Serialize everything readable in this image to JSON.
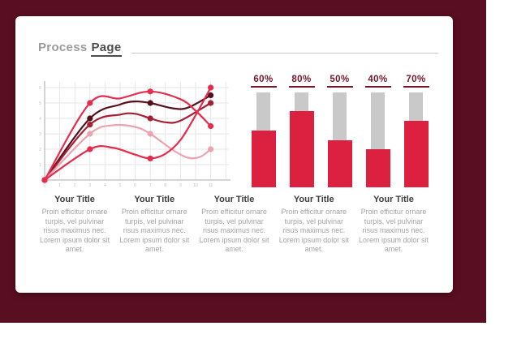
{
  "frame": {
    "color": "#5A0E21"
  },
  "title": {
    "prefix": "Process",
    "emphasis": "Page"
  },
  "chart_data": [
    {
      "id": "multi-line-chart",
      "type": "line",
      "title": "",
      "xlabel": "",
      "ylabel": "",
      "x_ticks": [
        "0",
        "1",
        "2",
        "3",
        "4",
        "5",
        "6",
        "7",
        "8",
        "9",
        "10",
        "11"
      ],
      "y_ticks": [
        "1",
        "2",
        "3",
        "4",
        "5",
        "6"
      ],
      "xlim": [
        0,
        12
      ],
      "ylim": [
        0,
        6.5
      ],
      "grid": true,
      "grid_color": "#E6E6E6",
      "axis_color": "#C9C9C9",
      "tick_color": "#C2C2C2",
      "series": [
        {
          "name": "dark-maroon",
          "color": "#541019",
          "points": [
            [
              0,
              0
            ],
            [
              3,
              4
            ],
            [
              7,
              5
            ],
            [
              11,
              5.5
            ]
          ],
          "path": [
            [
              0,
              0
            ],
            [
              3,
              4
            ],
            [
              5,
              4.9
            ],
            [
              6,
              5.1
            ],
            [
              7,
              5
            ],
            [
              8.5,
              4.65
            ],
            [
              9.5,
              4.7
            ],
            [
              11,
              5.5
            ]
          ]
        },
        {
          "name": "dark-red",
          "color": "#A81E32",
          "points": [
            [
              0,
              0
            ],
            [
              3,
              3.6
            ],
            [
              7,
              4
            ],
            [
              11,
              5
            ]
          ],
          "path": [
            [
              0,
              0
            ],
            [
              3,
              3.6
            ],
            [
              5,
              4.25
            ],
            [
              6,
              4.3
            ],
            [
              7,
              4
            ],
            [
              8,
              3.75
            ],
            [
              9,
              3.85
            ],
            [
              11,
              5
            ]
          ]
        },
        {
          "name": "pink",
          "color": "#ECA3AF",
          "points": [
            [
              0,
              0
            ],
            [
              3,
              3
            ],
            [
              7,
              3
            ],
            [
              11,
              2
            ]
          ],
          "path": [
            [
              0,
              0
            ],
            [
              3,
              3
            ],
            [
              4.5,
              3.55
            ],
            [
              6,
              3.45
            ],
            [
              7,
              3
            ],
            [
              8.5,
              1.95
            ],
            [
              9.5,
              1.45
            ],
            [
              10.3,
              1.5
            ],
            [
              11,
              2
            ]
          ]
        },
        {
          "name": "red-descending",
          "color": "#E62C4C",
          "points": [
            [
              0,
              0
            ],
            [
              3,
              5
            ],
            [
              7,
              5.75
            ],
            [
              11,
              3.5
            ]
          ],
          "path": [
            [
              0,
              0
            ],
            [
              3,
              5
            ],
            [
              5,
              5.3
            ],
            [
              7,
              5.75
            ],
            [
              9,
              5.25
            ],
            [
              10,
              4.5
            ],
            [
              11,
              3.5
            ]
          ]
        },
        {
          "name": "red-ascending",
          "color": "#E62C4C",
          "points": [
            [
              0,
              0
            ],
            [
              3,
              2
            ],
            [
              7,
              1.4
            ],
            [
              11,
              6
            ]
          ],
          "path": [
            [
              0,
              0
            ],
            [
              3,
              2
            ],
            [
              4.5,
              2.1
            ],
            [
              6,
              1.65
            ],
            [
              7,
              1.4
            ],
            [
              8,
              1.7
            ],
            [
              9,
              2.6
            ],
            [
              10,
              4.2
            ],
            [
              11,
              6
            ]
          ]
        }
      ]
    },
    {
      "id": "progress-bars",
      "type": "bar",
      "categories": [
        "60%",
        "80%",
        "50%",
        "40%",
        "70%"
      ],
      "values": [
        60,
        80,
        50,
        40,
        70
      ],
      "max": 100,
      "bar_color": "#DC2140",
      "track_color": "#C9C9C9",
      "label_color": "#701828"
    }
  ],
  "columns": [
    {
      "title": "Your Title",
      "body": "Proin efficitur ornare turpis, vel pulvinar risus maximus nec. Lorem ipsum dolor sit amet."
    },
    {
      "title": "Your Title",
      "body": "Proin efficitur ornare turpis, vel pulvinar risus maximus nec. Lorem ipsum dolor sit amet."
    },
    {
      "title": "Your Title",
      "body": "Proin efficitur ornare turpis, vel pulvinar risus maximus nec. Lorem ipsum dolor sit amet."
    },
    {
      "title": "Your Title",
      "body": "Proin efficitur ornare turpis, vel pulvinar risus maximus nec. Lorem ipsum dolor sit amet."
    },
    {
      "title": "Your Title",
      "body": "Proin efficitur ornare turpis, vel pulvinar risus maximus nec. Lorem ipsum dolor sit amet."
    }
  ]
}
